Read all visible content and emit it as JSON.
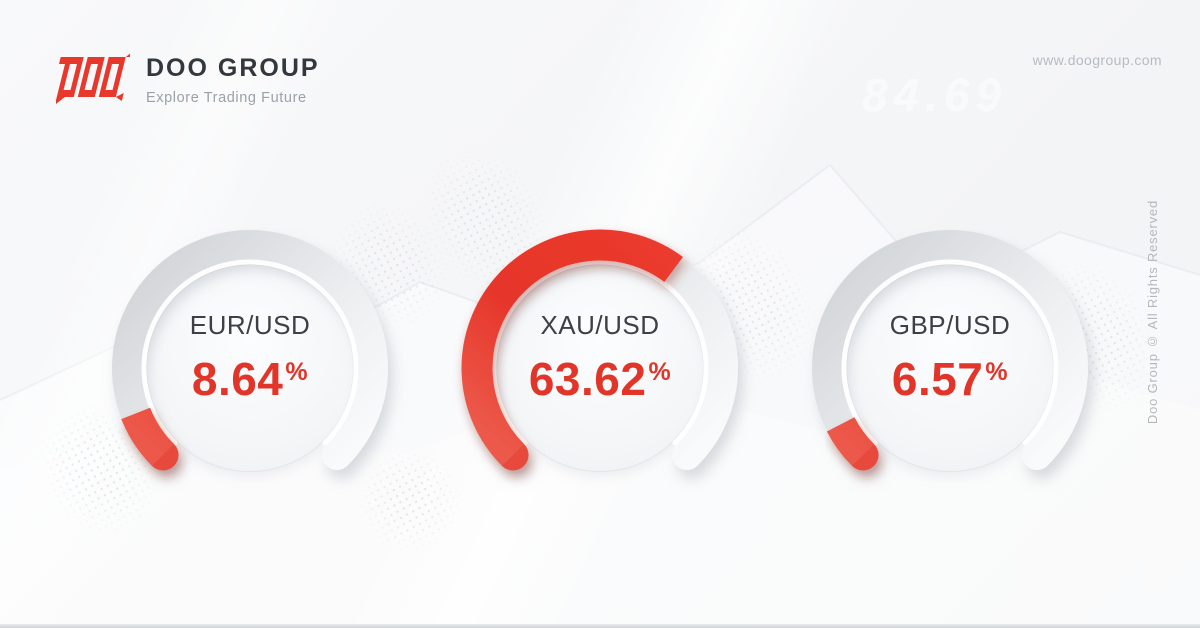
{
  "header": {
    "logo_name": "DOO GROUP",
    "logo_tagline": "Explore Trading Future",
    "website": "www.doogroup.com"
  },
  "footer": {
    "copyright": "Doo Group © All Rights Reserved"
  },
  "background": {
    "watermark_number": "84.69"
  },
  "colors": {
    "brand_red": "#e8382c",
    "value_red": "#e1352a",
    "title_text": "#3d4147",
    "muted_text": "#b4b8bd",
    "background": "#f5f6f8",
    "track": "#dfe1e4"
  },
  "chart_data": {
    "type": "gauge",
    "max": 100,
    "arc_degrees": 270,
    "start_angle_deg": 225,
    "accent_color": "#e8382c",
    "track_color": "#dfe1e4",
    "legend_position": "center",
    "gauges": [
      {
        "label": "EUR/USD",
        "value": 8.64,
        "value_text": "8.64",
        "unit": "%"
      },
      {
        "label": "XAU/USD",
        "value": 63.62,
        "value_text": "63.62",
        "unit": "%"
      },
      {
        "label": "GBP/USD",
        "value": 6.57,
        "value_text": "6.57",
        "unit": "%"
      }
    ]
  }
}
